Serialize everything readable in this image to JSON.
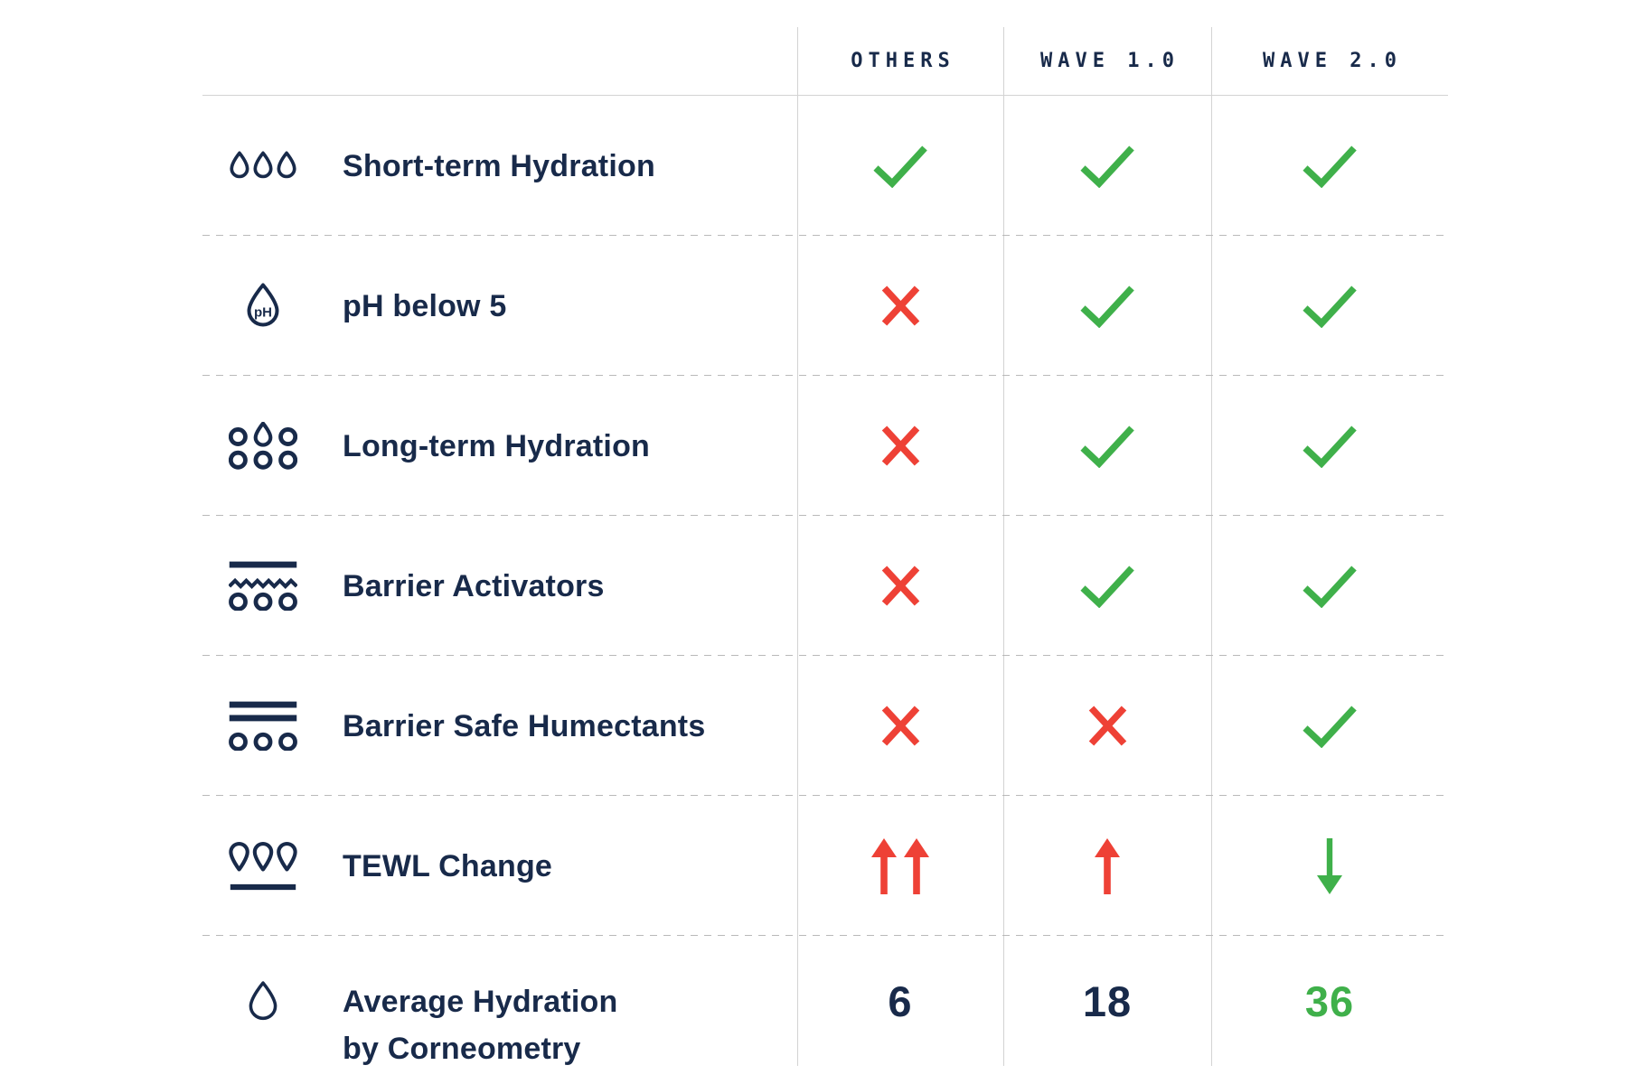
{
  "table": {
    "columns": [
      "OTHERS",
      "WAVE 1.0",
      "WAVE 2.0"
    ],
    "ph_icon_text": "pH",
    "rows": [
      {
        "icon": "short-term-hydration-icon",
        "label": "Short-term Hydration",
        "values": [
          "check",
          "check",
          "check"
        ]
      },
      {
        "icon": "ph-icon",
        "label": "pH below 5",
        "values": [
          "cross",
          "check",
          "check"
        ]
      },
      {
        "icon": "long-term-hydration-icon",
        "label": "Long-term Hydration",
        "values": [
          "cross",
          "check",
          "check"
        ]
      },
      {
        "icon": "barrier-activators-icon",
        "label": "Barrier Activators",
        "values": [
          "cross",
          "check",
          "check"
        ]
      },
      {
        "icon": "barrier-safe-humectants-icon",
        "label": "Barrier Safe Humectants",
        "values": [
          "cross",
          "cross",
          "check"
        ]
      },
      {
        "icon": "tewl-change-icon",
        "label": "TEWL Change",
        "values": [
          "up-double",
          "up",
          "down"
        ]
      },
      {
        "icon": "average-hydration-icon",
        "label": "Average Hydration",
        "label2": "by Corneometry",
        "values": [
          "6",
          "18",
          "36"
        ],
        "value_colors": [
          "navy",
          "navy",
          "green"
        ]
      }
    ]
  },
  "colors": {
    "navy": "#182a4a",
    "green": "#3fb04a",
    "red": "#ee4136",
    "grid_line": "#d3d3d3",
    "dash_line": "#b9b9b9"
  },
  "chart_data": {
    "type": "table",
    "title": "",
    "columns": [
      "OTHERS",
      "WAVE 1.0",
      "WAVE 2.0"
    ],
    "rows": [
      {
        "label": "Short-term Hydration",
        "values": [
          "yes",
          "yes",
          "yes"
        ]
      },
      {
        "label": "pH below 5",
        "values": [
          "no",
          "yes",
          "yes"
        ]
      },
      {
        "label": "Long-term Hydration",
        "values": [
          "no",
          "yes",
          "yes"
        ]
      },
      {
        "label": "Barrier Activators",
        "values": [
          "no",
          "yes",
          "yes"
        ]
      },
      {
        "label": "Barrier Safe Humectants",
        "values": [
          "no",
          "no",
          "yes"
        ]
      },
      {
        "label": "TEWL Change",
        "values": [
          "strong increase",
          "increase",
          "decrease"
        ]
      },
      {
        "label": "Average Hydration by Corneometry",
        "values": [
          6,
          18,
          36
        ]
      }
    ]
  }
}
